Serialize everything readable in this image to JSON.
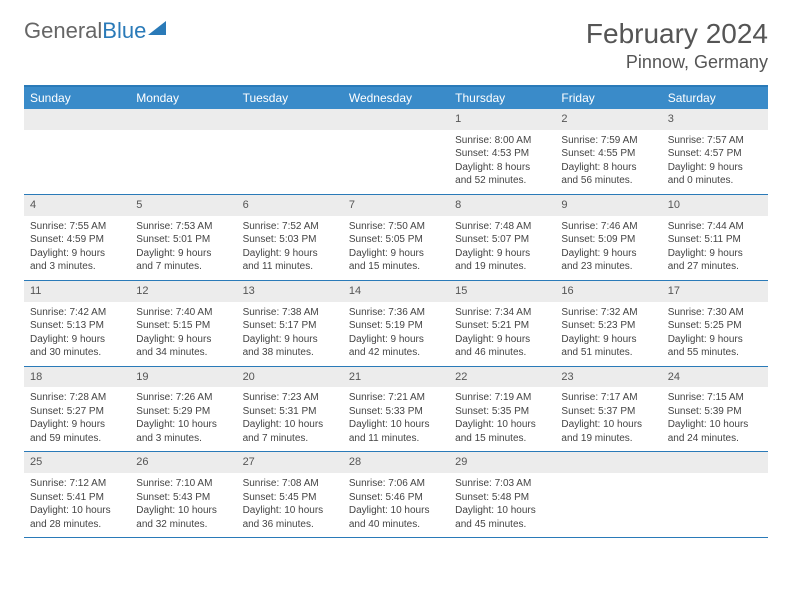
{
  "logo": {
    "text1": "General",
    "text2": "Blue"
  },
  "title": "February 2024",
  "location": "Pinnow, Germany",
  "colors": {
    "header_bar": "#3a8bc9",
    "border": "#2a7ab8",
    "daynum_bg": "#ececec",
    "text": "#444444"
  },
  "weekdays": [
    "Sunday",
    "Monday",
    "Tuesday",
    "Wednesday",
    "Thursday",
    "Friday",
    "Saturday"
  ],
  "weeks": [
    [
      null,
      null,
      null,
      null,
      {
        "n": "1",
        "sr": "Sunrise: 8:00 AM",
        "ss": "Sunset: 4:53 PM",
        "dl": "Daylight: 8 hours and 52 minutes."
      },
      {
        "n": "2",
        "sr": "Sunrise: 7:59 AM",
        "ss": "Sunset: 4:55 PM",
        "dl": "Daylight: 8 hours and 56 minutes."
      },
      {
        "n": "3",
        "sr": "Sunrise: 7:57 AM",
        "ss": "Sunset: 4:57 PM",
        "dl": "Daylight: 9 hours and 0 minutes."
      }
    ],
    [
      {
        "n": "4",
        "sr": "Sunrise: 7:55 AM",
        "ss": "Sunset: 4:59 PM",
        "dl": "Daylight: 9 hours and 3 minutes."
      },
      {
        "n": "5",
        "sr": "Sunrise: 7:53 AM",
        "ss": "Sunset: 5:01 PM",
        "dl": "Daylight: 9 hours and 7 minutes."
      },
      {
        "n": "6",
        "sr": "Sunrise: 7:52 AM",
        "ss": "Sunset: 5:03 PM",
        "dl": "Daylight: 9 hours and 11 minutes."
      },
      {
        "n": "7",
        "sr": "Sunrise: 7:50 AM",
        "ss": "Sunset: 5:05 PM",
        "dl": "Daylight: 9 hours and 15 minutes."
      },
      {
        "n": "8",
        "sr": "Sunrise: 7:48 AM",
        "ss": "Sunset: 5:07 PM",
        "dl": "Daylight: 9 hours and 19 minutes."
      },
      {
        "n": "9",
        "sr": "Sunrise: 7:46 AM",
        "ss": "Sunset: 5:09 PM",
        "dl": "Daylight: 9 hours and 23 minutes."
      },
      {
        "n": "10",
        "sr": "Sunrise: 7:44 AM",
        "ss": "Sunset: 5:11 PM",
        "dl": "Daylight: 9 hours and 27 minutes."
      }
    ],
    [
      {
        "n": "11",
        "sr": "Sunrise: 7:42 AM",
        "ss": "Sunset: 5:13 PM",
        "dl": "Daylight: 9 hours and 30 minutes."
      },
      {
        "n": "12",
        "sr": "Sunrise: 7:40 AM",
        "ss": "Sunset: 5:15 PM",
        "dl": "Daylight: 9 hours and 34 minutes."
      },
      {
        "n": "13",
        "sr": "Sunrise: 7:38 AM",
        "ss": "Sunset: 5:17 PM",
        "dl": "Daylight: 9 hours and 38 minutes."
      },
      {
        "n": "14",
        "sr": "Sunrise: 7:36 AM",
        "ss": "Sunset: 5:19 PM",
        "dl": "Daylight: 9 hours and 42 minutes."
      },
      {
        "n": "15",
        "sr": "Sunrise: 7:34 AM",
        "ss": "Sunset: 5:21 PM",
        "dl": "Daylight: 9 hours and 46 minutes."
      },
      {
        "n": "16",
        "sr": "Sunrise: 7:32 AM",
        "ss": "Sunset: 5:23 PM",
        "dl": "Daylight: 9 hours and 51 minutes."
      },
      {
        "n": "17",
        "sr": "Sunrise: 7:30 AM",
        "ss": "Sunset: 5:25 PM",
        "dl": "Daylight: 9 hours and 55 minutes."
      }
    ],
    [
      {
        "n": "18",
        "sr": "Sunrise: 7:28 AM",
        "ss": "Sunset: 5:27 PM",
        "dl": "Daylight: 9 hours and 59 minutes."
      },
      {
        "n": "19",
        "sr": "Sunrise: 7:26 AM",
        "ss": "Sunset: 5:29 PM",
        "dl": "Daylight: 10 hours and 3 minutes."
      },
      {
        "n": "20",
        "sr": "Sunrise: 7:23 AM",
        "ss": "Sunset: 5:31 PM",
        "dl": "Daylight: 10 hours and 7 minutes."
      },
      {
        "n": "21",
        "sr": "Sunrise: 7:21 AM",
        "ss": "Sunset: 5:33 PM",
        "dl": "Daylight: 10 hours and 11 minutes."
      },
      {
        "n": "22",
        "sr": "Sunrise: 7:19 AM",
        "ss": "Sunset: 5:35 PM",
        "dl": "Daylight: 10 hours and 15 minutes."
      },
      {
        "n": "23",
        "sr": "Sunrise: 7:17 AM",
        "ss": "Sunset: 5:37 PM",
        "dl": "Daylight: 10 hours and 19 minutes."
      },
      {
        "n": "24",
        "sr": "Sunrise: 7:15 AM",
        "ss": "Sunset: 5:39 PM",
        "dl": "Daylight: 10 hours and 24 minutes."
      }
    ],
    [
      {
        "n": "25",
        "sr": "Sunrise: 7:12 AM",
        "ss": "Sunset: 5:41 PM",
        "dl": "Daylight: 10 hours and 28 minutes."
      },
      {
        "n": "26",
        "sr": "Sunrise: 7:10 AM",
        "ss": "Sunset: 5:43 PM",
        "dl": "Daylight: 10 hours and 32 minutes."
      },
      {
        "n": "27",
        "sr": "Sunrise: 7:08 AM",
        "ss": "Sunset: 5:45 PM",
        "dl": "Daylight: 10 hours and 36 minutes."
      },
      {
        "n": "28",
        "sr": "Sunrise: 7:06 AM",
        "ss": "Sunset: 5:46 PM",
        "dl": "Daylight: 10 hours and 40 minutes."
      },
      {
        "n": "29",
        "sr": "Sunrise: 7:03 AM",
        "ss": "Sunset: 5:48 PM",
        "dl": "Daylight: 10 hours and 45 minutes."
      },
      null,
      null
    ]
  ]
}
